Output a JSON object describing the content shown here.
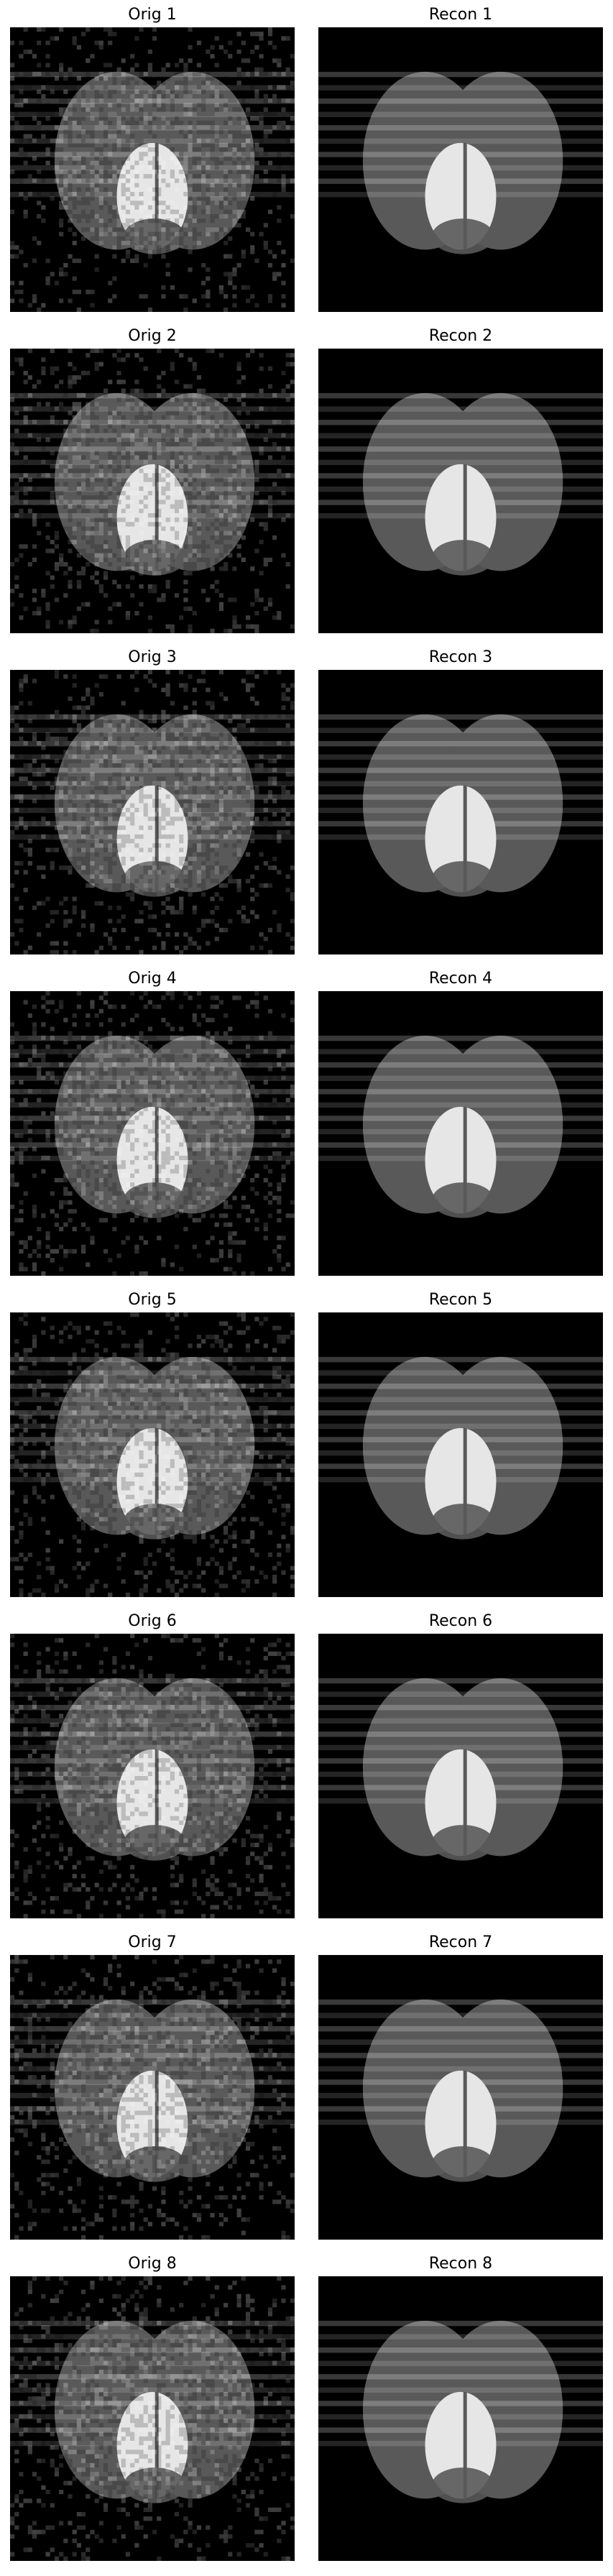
{
  "figure": {
    "columns": [
      "Orig",
      "Recon"
    ],
    "rows": [
      {
        "orig_title": "Orig 1",
        "recon_title": "Recon 1"
      },
      {
        "orig_title": "Orig 2",
        "recon_title": "Recon 2"
      },
      {
        "orig_title": "Orig 3",
        "recon_title": "Recon 3"
      },
      {
        "orig_title": "Orig 4",
        "recon_title": "Recon 4"
      },
      {
        "orig_title": "Orig 5",
        "recon_title": "Recon 5"
      },
      {
        "orig_title": "Orig 6",
        "recon_title": "Recon 6"
      },
      {
        "orig_title": "Orig 7",
        "recon_title": "Recon 7"
      },
      {
        "orig_title": "Orig 8",
        "recon_title": "Recon 8"
      }
    ],
    "colors": {
      "background": "#000000",
      "outer_lobes": "#595959",
      "inner_lobe": "#e6e6e6",
      "stripe_light": "#8a8a8a",
      "stripe_dark": "#1f1f1f"
    },
    "image_content": "grayscale phantom: two overlapping gray ellipses with a bright central ellipse, horizontal stripe artifacts; original images are noisy, reconstructions are clean"
  }
}
